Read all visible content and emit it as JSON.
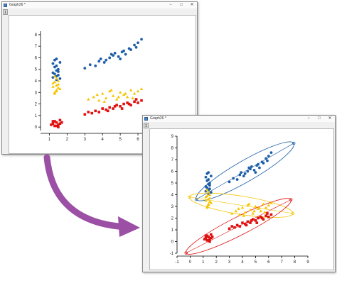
{
  "windows": [
    {
      "title": "Graph26 *",
      "tab": "1",
      "controls": {
        "minimize": "−",
        "maximize": "□",
        "close": "✕"
      }
    },
    {
      "title": "Graph26 *",
      "tab": "1",
      "controls": {
        "minimize": "−",
        "maximize": "□",
        "close": "✕"
      }
    }
  ],
  "colors": {
    "blue": "#1f5fa8",
    "yellow": "#f5c400",
    "red": "#e01010",
    "arrow": "#9b4fa5"
  },
  "chart_data": [
    {
      "type": "scatter",
      "title": "",
      "xlabel": "",
      "ylabel": "",
      "xlim": [
        0.5,
        6.6
      ],
      "ylim": [
        -0.3,
        8.3
      ],
      "xticks": [
        "1",
        "2",
        "3",
        "4",
        "5",
        "6"
      ],
      "yticks": [
        "0",
        "1",
        "2",
        "3",
        "4",
        "5",
        "6",
        "7",
        "8"
      ],
      "series": [
        {
          "color": "#1f5fa8",
          "marker": "circle",
          "x": [
            1.2,
            1.3,
            1.4,
            1.5,
            1.3,
            1.4,
            1.5,
            1.2,
            1.6,
            1.4,
            1.3,
            1.5,
            1.4,
            1.2,
            1.6,
            1.4,
            3.0,
            3.3,
            3.6,
            3.9,
            4.1,
            4.4,
            4.6,
            4.9,
            5.1,
            5.3,
            5.6,
            5.8,
            6.0,
            6.2,
            4.2,
            4.7,
            5.0,
            5.5,
            5.9,
            3.8,
            4.5,
            5.2
          ],
          "y": [
            5.5,
            5.2,
            4.9,
            4.8,
            4.6,
            4.4,
            5.0,
            4.3,
            5.6,
            4.1,
            5.8,
            4.5,
            5.3,
            4.7,
            4.2,
            5.9,
            5.1,
            5.4,
            5.3,
            5.9,
            5.6,
            6.0,
            6.2,
            6.1,
            6.5,
            6.3,
            6.7,
            7.1,
            7.3,
            7.6,
            5.8,
            6.4,
            5.9,
            6.8,
            6.9,
            5.7,
            6.3,
            6.6
          ]
        },
        {
          "color": "#f5c400",
          "marker": "triangle",
          "x": [
            1.2,
            1.3,
            1.4,
            1.5,
            1.3,
            1.4,
            1.5,
            1.2,
            1.6,
            1.4,
            1.3,
            1.5,
            1.4,
            1.3,
            3.2,
            3.5,
            3.8,
            4.0,
            4.2,
            4.4,
            4.6,
            4.8,
            5.0,
            5.2,
            5.4,
            5.6,
            5.8,
            6.0,
            6.2,
            4.1,
            4.5,
            4.9,
            5.3,
            3.7,
            5.7
          ],
          "y": [
            3.5,
            3.9,
            3.2,
            4.0,
            3.0,
            3.6,
            3.4,
            3.8,
            3.3,
            4.2,
            2.9,
            3.7,
            3.1,
            4.4,
            2.4,
            2.6,
            2.3,
            2.9,
            2.5,
            3.1,
            2.7,
            2.4,
            3.0,
            2.8,
            2.6,
            3.2,
            2.9,
            3.1,
            3.3,
            2.2,
            3.2,
            2.6,
            2.9,
            2.8,
            2.5
          ]
        },
        {
          "color": "#e01010",
          "marker": "square",
          "x": [
            1.1,
            1.2,
            1.3,
            1.4,
            1.5,
            1.6,
            1.3,
            1.5,
            1.7,
            1.4,
            1.2,
            1.6,
            3.0,
            3.2,
            3.4,
            3.6,
            3.8,
            4.0,
            4.2,
            4.4,
            4.6,
            4.8,
            5.0,
            5.2,
            5.4,
            5.6,
            5.8,
            6.0,
            6.2,
            4.3,
            4.7,
            5.1,
            5.5,
            5.9
          ],
          "y": [
            0.2,
            0.3,
            0.1,
            0.4,
            0.2,
            0.3,
            0.5,
            0.0,
            0.4,
            0.1,
            0.5,
            0.6,
            1.1,
            1.3,
            1.2,
            1.4,
            1.3,
            1.6,
            1.5,
            1.7,
            1.6,
            1.9,
            1.8,
            2.0,
            2.1,
            1.9,
            2.2,
            2.1,
            2.3,
            1.4,
            1.8,
            1.6,
            2.0,
            2.4
          ]
        }
      ]
    },
    {
      "type": "scatter",
      "title": "",
      "xlabel": "",
      "ylabel": "",
      "xlim": [
        -1,
        9
      ],
      "ylim": [
        -1,
        9
      ],
      "xticks": [
        "-1",
        "0",
        "1",
        "2",
        "3",
        "4",
        "5",
        "6",
        "7",
        "8",
        "9"
      ],
      "yticks": [
        "-1",
        "0",
        "1",
        "2",
        "3",
        "4",
        "5",
        "6",
        "7",
        "8",
        "9"
      ],
      "ellipses": [
        {
          "color": "#1f5fa8",
          "center": [
            4.2,
            6.0
          ],
          "rx": 4.3,
          "ry": 0.8,
          "angle_deg": 30
        },
        {
          "color": "#f5c400",
          "center": [
            3.9,
            3.1
          ],
          "rx": 4.0,
          "ry": 0.7,
          "angle_deg": -9
        },
        {
          "color": "#e01010",
          "center": [
            3.7,
            1.3
          ],
          "rx": 4.5,
          "ry": 0.7,
          "angle_deg": 27
        }
      ],
      "series": [
        {
          "color": "#1f5fa8",
          "marker": "circle",
          "x": [
            1.2,
            1.3,
            1.4,
            1.5,
            1.3,
            1.4,
            1.5,
            1.2,
            1.6,
            1.4,
            1.3,
            1.5,
            1.4,
            1.2,
            1.6,
            1.4,
            3.0,
            3.3,
            3.6,
            3.9,
            4.1,
            4.4,
            4.6,
            4.9,
            5.1,
            5.3,
            5.6,
            5.8,
            6.0,
            6.2,
            4.2,
            4.7,
            5.0,
            5.5,
            5.9,
            3.8,
            4.5,
            5.2
          ],
          "y": [
            5.5,
            5.2,
            4.9,
            4.8,
            4.6,
            4.4,
            5.0,
            4.3,
            5.6,
            4.1,
            5.8,
            4.5,
            5.3,
            4.7,
            4.2,
            5.9,
            5.1,
            5.4,
            5.3,
            5.9,
            5.6,
            6.0,
            6.2,
            6.1,
            6.5,
            6.3,
            6.7,
            7.1,
            7.3,
            7.6,
            5.8,
            6.4,
            5.9,
            6.8,
            6.9,
            5.7,
            6.3,
            6.6
          ]
        },
        {
          "color": "#f5c400",
          "marker": "triangle",
          "x": [
            1.2,
            1.3,
            1.4,
            1.5,
            1.3,
            1.4,
            1.5,
            1.2,
            1.6,
            1.4,
            1.3,
            1.5,
            1.4,
            1.3,
            3.2,
            3.5,
            3.8,
            4.0,
            4.2,
            4.4,
            4.6,
            4.8,
            5.0,
            5.2,
            5.4,
            5.6,
            5.8,
            6.0,
            6.2,
            4.1,
            4.5,
            4.9,
            5.3,
            3.7,
            5.7
          ],
          "y": [
            3.5,
            3.9,
            3.2,
            4.0,
            3.0,
            3.6,
            3.4,
            3.8,
            3.3,
            4.2,
            2.9,
            3.7,
            3.1,
            4.4,
            2.4,
            2.6,
            2.3,
            2.9,
            2.5,
            3.1,
            2.7,
            2.4,
            3.0,
            2.8,
            2.6,
            3.2,
            2.9,
            3.1,
            3.3,
            2.2,
            3.2,
            2.6,
            2.9,
            2.8,
            2.5
          ]
        },
        {
          "color": "#e01010",
          "marker": "square",
          "x": [
            1.1,
            1.2,
            1.3,
            1.4,
            1.5,
            1.6,
            1.3,
            1.5,
            1.7,
            1.4,
            1.2,
            1.6,
            3.0,
            3.2,
            3.4,
            3.6,
            3.8,
            4.0,
            4.2,
            4.4,
            4.6,
            4.8,
            5.0,
            5.2,
            5.4,
            5.6,
            5.8,
            6.0,
            6.2,
            4.3,
            4.7,
            5.1,
            5.5,
            5.9
          ],
          "y": [
            0.2,
            0.3,
            0.1,
            0.4,
            0.2,
            0.3,
            0.5,
            0.0,
            0.4,
            0.1,
            0.5,
            0.6,
            1.1,
            1.3,
            1.2,
            1.4,
            1.3,
            1.6,
            1.5,
            1.7,
            1.6,
            1.9,
            1.8,
            2.0,
            2.1,
            1.9,
            2.2,
            2.1,
            2.3,
            1.4,
            1.8,
            1.6,
            2.0,
            2.4
          ]
        }
      ]
    }
  ]
}
